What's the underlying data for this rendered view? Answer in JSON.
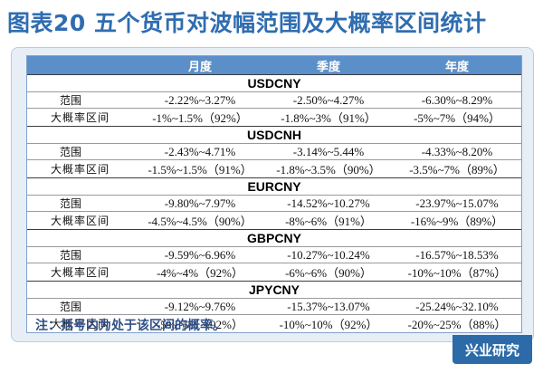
{
  "title": "图表20 五个货币对波幅范围及大概率区间统计",
  "table": {
    "headers": [
      "",
      "月度",
      "季度",
      "年度"
    ],
    "sections": [
      {
        "pair": "USDCNY",
        "range": {
          "label": "范围",
          "monthly": "-2.22%~3.27%",
          "quarterly": "-2.50%~4.27%",
          "yearly": "-6.30%~8.29%"
        },
        "prob": {
          "label": "大概率区间",
          "monthly": "-1%~1.5%（92%）",
          "quarterly": "-1.8%~3%（91%）",
          "yearly": "-5%~7%（94%）"
        }
      },
      {
        "pair": "USDCNH",
        "range": {
          "label": "范围",
          "monthly": "-2.43%~4.71%",
          "quarterly": "-3.14%~5.44%",
          "yearly": "-4.33%~8.20%"
        },
        "prob": {
          "label": "大概率区间",
          "monthly": "-1.5%~1.5%（91%）",
          "quarterly": "-1.8%~3.5%（90%）",
          "yearly": "-3.5%~7%（89%）"
        }
      },
      {
        "pair": "EURCNY",
        "range": {
          "label": "范围",
          "monthly": "-9.80%~7.97%",
          "quarterly": "-14.52%~10.27%",
          "yearly": "-23.97%~15.07%"
        },
        "prob": {
          "label": "大概率区间",
          "monthly": "-4.5%~4.5%（90%）",
          "quarterly": "-8%~6%（91%）",
          "yearly": "-16%~9%（89%）"
        }
      },
      {
        "pair": "GBPCNY",
        "range": {
          "label": "范围",
          "monthly": "-9.59%~6.96%",
          "quarterly": "-10.27%~10.24%",
          "yearly": "-16.57%~18.53%"
        },
        "prob": {
          "label": "大概率区间",
          "monthly": "-4%~4%（92%）",
          "quarterly": "-6%~6%（90%）",
          "yearly": "-10%~10%（87%）"
        }
      },
      {
        "pair": "JPYCNY",
        "range": {
          "label": "范围",
          "monthly": "-9.12%~9.76%",
          "quarterly": "-15.37%~13.07%",
          "yearly": "-25.24%~32.10%"
        },
        "prob": {
          "label": "大概率区间",
          "monthly": "-5%~5%（92%）",
          "quarterly": "-10%~10%（92%）",
          "yearly": "-20%~25%（88%）"
        }
      }
    ]
  },
  "note": "注：括号内为处于该区间的概率。",
  "brand": "兴业研究"
}
